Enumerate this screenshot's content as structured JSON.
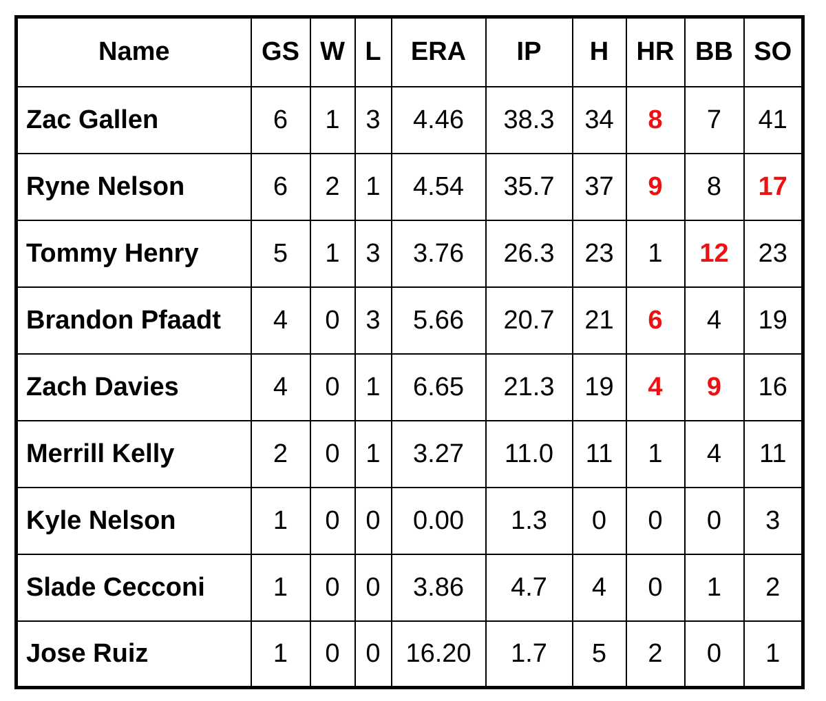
{
  "colors": {
    "text": "#000000",
    "highlight": "#ee1111",
    "border": "#000000",
    "background": "#ffffff"
  },
  "table": {
    "columns": [
      "Name",
      "GS",
      "W",
      "L",
      "ERA",
      "IP",
      "H",
      "HR",
      "BB",
      "SO"
    ],
    "rows": [
      {
        "cells": [
          "Zac Gallen",
          "6",
          "1",
          "3",
          "4.46",
          "38.3",
          "34",
          "8",
          "7",
          "41"
        ],
        "highlight": [
          7
        ]
      },
      {
        "cells": [
          "Ryne Nelson",
          "6",
          "2",
          "1",
          "4.54",
          "35.7",
          "37",
          "9",
          "8",
          "17"
        ],
        "highlight": [
          7,
          9
        ]
      },
      {
        "cells": [
          "Tommy Henry",
          "5",
          "1",
          "3",
          "3.76",
          "26.3",
          "23",
          "1",
          "12",
          "23"
        ],
        "highlight": [
          8
        ]
      },
      {
        "cells": [
          "Brandon Pfaadt",
          "4",
          "0",
          "3",
          "5.66",
          "20.7",
          "21",
          "6",
          "4",
          "19"
        ],
        "highlight": [
          7
        ]
      },
      {
        "cells": [
          "Zach Davies",
          "4",
          "0",
          "1",
          "6.65",
          "21.3",
          "19",
          "4",
          "9",
          "16"
        ],
        "highlight": [
          7,
          8
        ]
      },
      {
        "cells": [
          "Merrill Kelly",
          "2",
          "0",
          "1",
          "3.27",
          "11.0",
          "11",
          "1",
          "4",
          "11"
        ],
        "highlight": []
      },
      {
        "cells": [
          "Kyle Nelson",
          "1",
          "0",
          "0",
          "0.00",
          "1.3",
          "0",
          "0",
          "0",
          "3"
        ],
        "highlight": []
      },
      {
        "cells": [
          "Slade Cecconi",
          "1",
          "0",
          "0",
          "3.86",
          "4.7",
          "4",
          "0",
          "1",
          "2"
        ],
        "highlight": []
      },
      {
        "cells": [
          "Jose Ruiz",
          "1",
          "0",
          "0",
          "16.20",
          "1.7",
          "5",
          "2",
          "0",
          "1"
        ],
        "highlight": []
      }
    ]
  }
}
